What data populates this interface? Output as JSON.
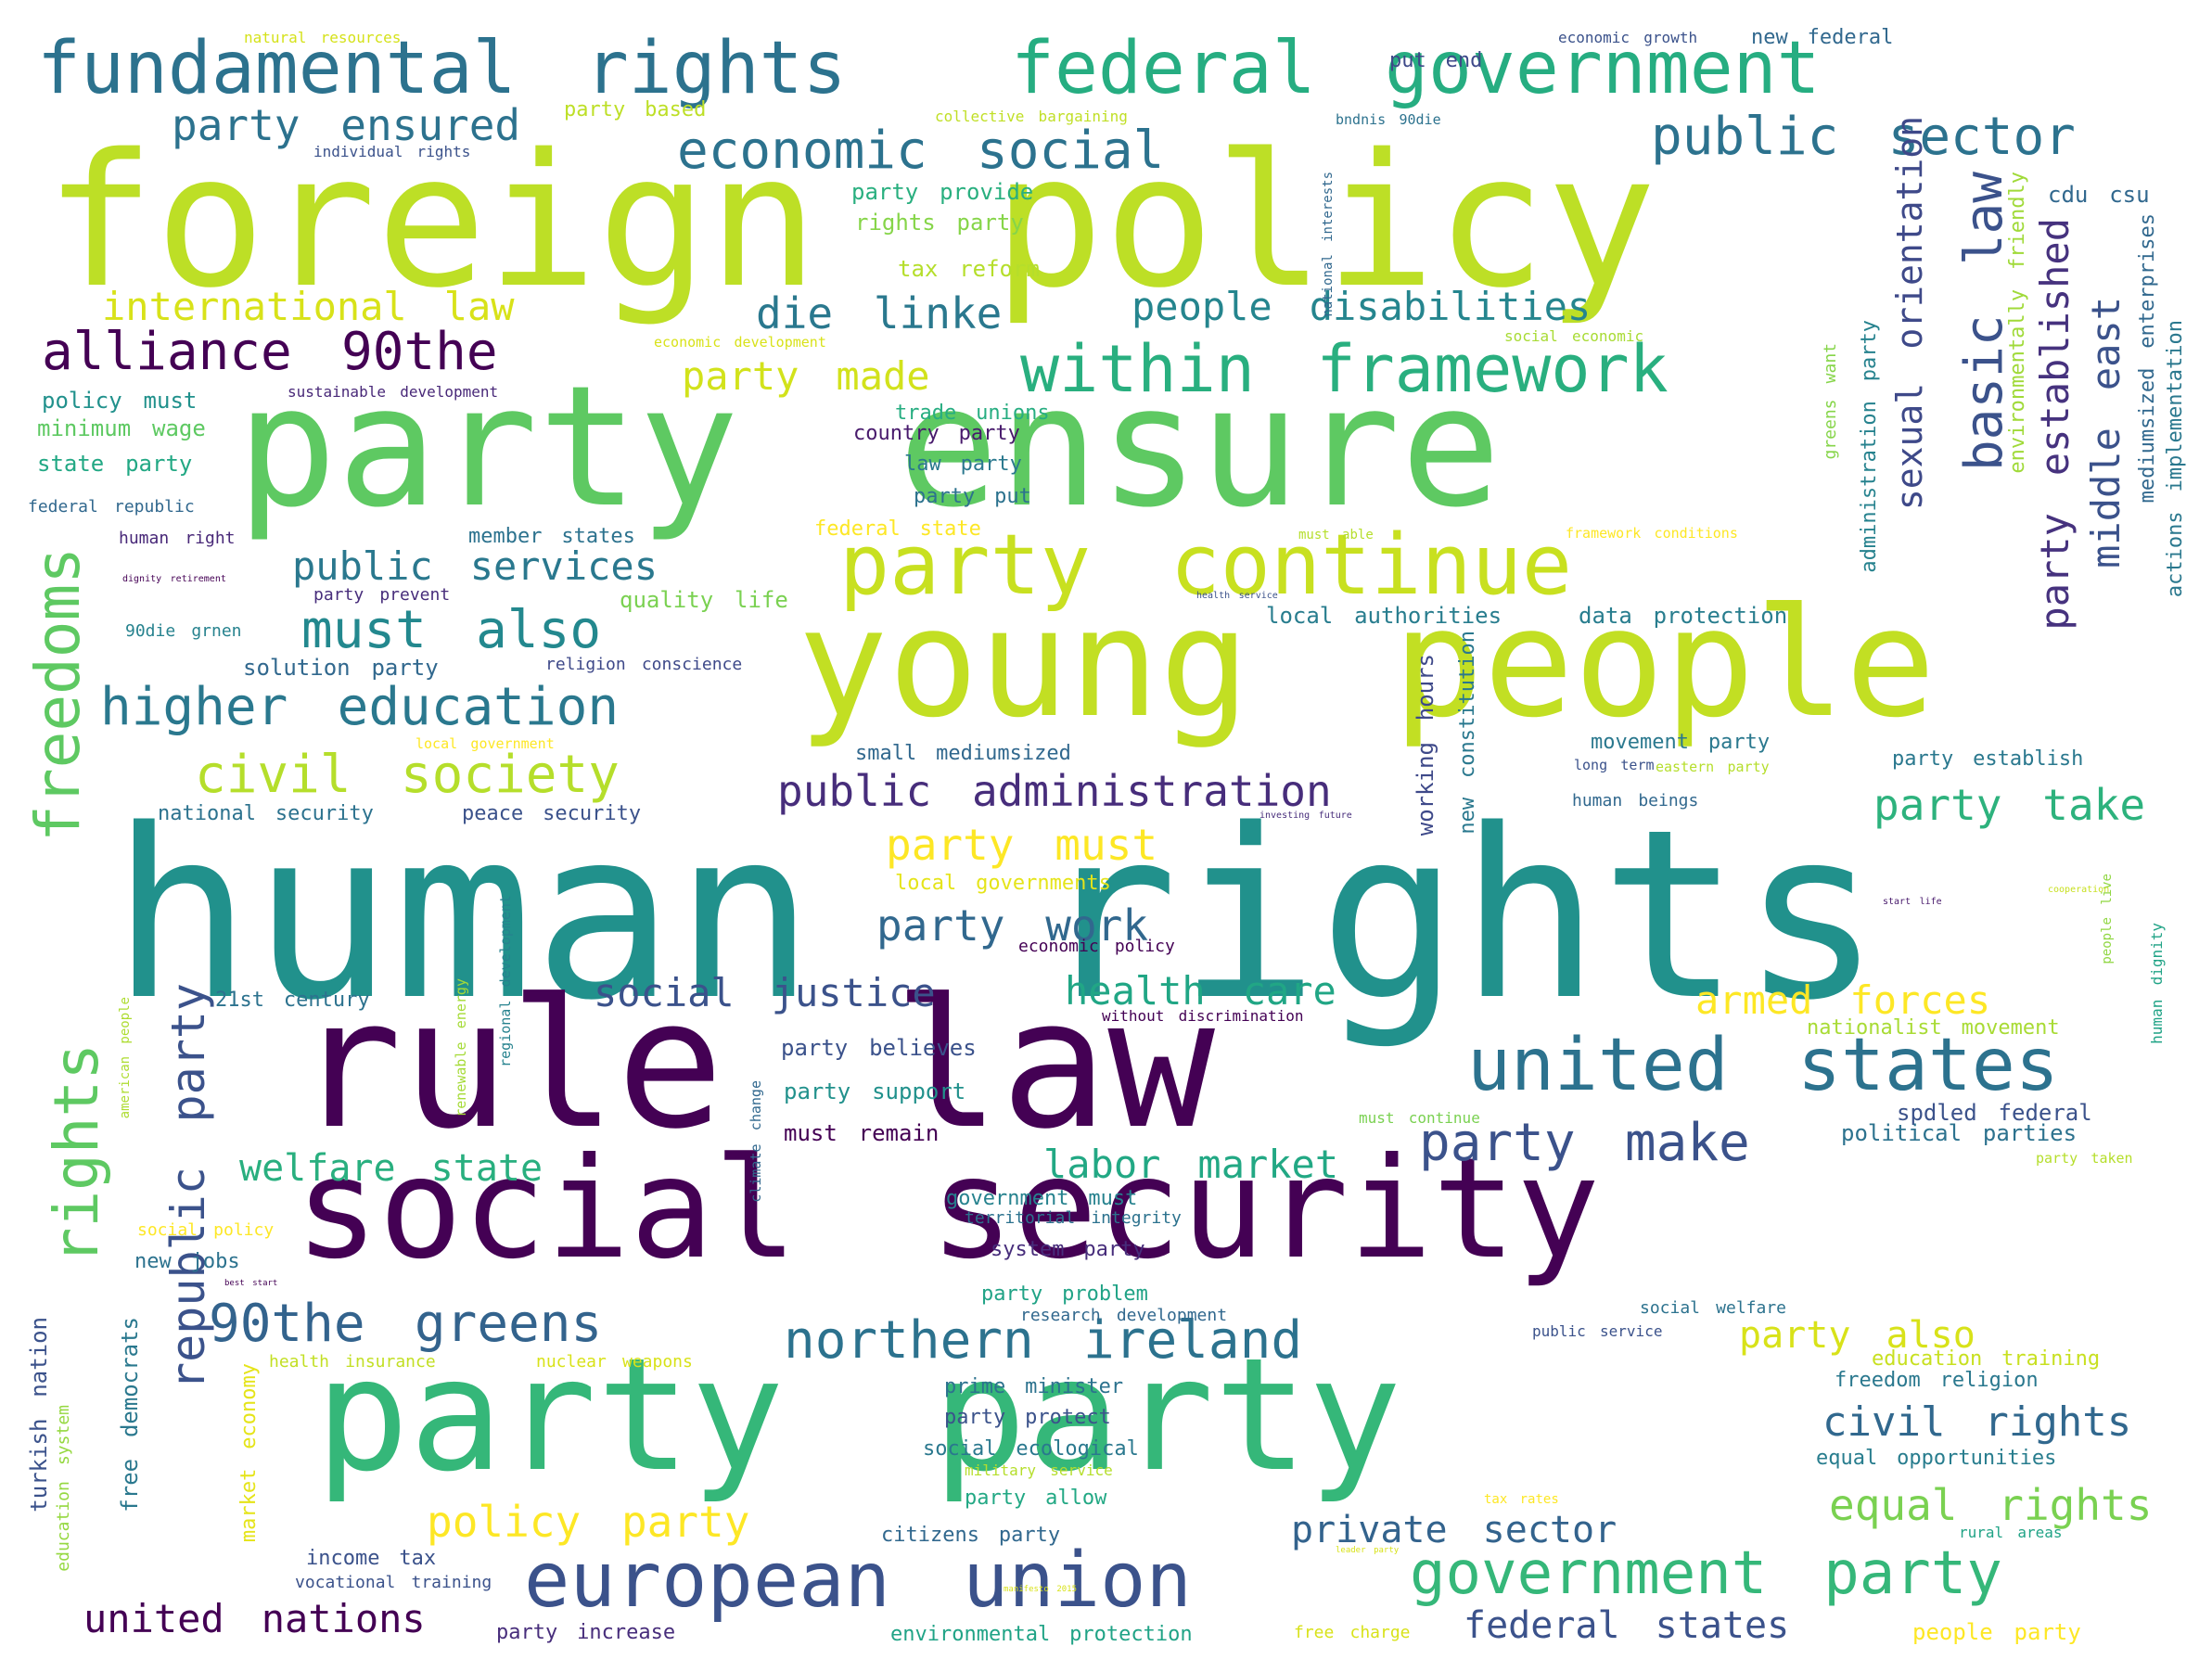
{
  "words": [
    {
      "text": "human rights",
      "color": "#21918c"
    },
    {
      "text": "foreign policy",
      "color": "#bddf26"
    },
    {
      "text": "party ensure",
      "color": "#5ec962"
    },
    {
      "text": "young people",
      "color": "#c2df23"
    },
    {
      "text": "rule law",
      "color": "#440154"
    },
    {
      "text": "social security",
      "color": "#440154"
    },
    {
      "text": "party party",
      "color": "#35b779"
    },
    {
      "text": "european union",
      "color": "#3b528b"
    },
    {
      "text": "party continue",
      "color": "#c8e020"
    },
    {
      "text": "united states",
      "color": "#2c728e"
    },
    {
      "text": "fundamental rights",
      "color": "#2c728e"
    },
    {
      "text": "federal government",
      "color": "#26ad81"
    },
    {
      "text": "government party",
      "color": "#35b779"
    },
    {
      "text": "within framework",
      "color": "#29af7f"
    },
    {
      "text": "freedoms",
      "color": "#5ec962"
    },
    {
      "text": "rights",
      "color": "#5ec962"
    },
    {
      "text": "alliance 90the",
      "color": "#440154"
    },
    {
      "text": "higher education",
      "color": "#2a788e"
    },
    {
      "text": "civil society",
      "color": "#b5de2b"
    },
    {
      "text": "must also",
      "color": "#23888e"
    },
    {
      "text": "northern ireland",
      "color": "#2c728e"
    },
    {
      "text": "90the greens",
      "color": "#33638d"
    },
    {
      "text": "public sector",
      "color": "#2c728e"
    },
    {
      "text": "economic social",
      "color": "#2c728e"
    },
    {
      "text": "republic party",
      "color": "#3b528b"
    },
    {
      "text": "party make",
      "color": "#3b528b"
    },
    {
      "text": "public administration",
      "color": "#472d7b"
    },
    {
      "text": "basic law",
      "color": "#3b528b"
    },
    {
      "text": "sexual orientation",
      "color": "#3e4989"
    },
    {
      "text": "party ensured",
      "color": "#2c728e"
    },
    {
      "text": "international law",
      "color": "#d8e219"
    },
    {
      "text": "die linke",
      "color": "#2a788e"
    },
    {
      "text": "people disabilities",
      "color": "#25858e"
    },
    {
      "text": "party made",
      "color": "#d2e21b"
    },
    {
      "text": "public services",
      "color": "#2a788e"
    },
    {
      "text": "party established",
      "color": "#46327e"
    },
    {
      "text": "middle east",
      "color": "#3b528b"
    },
    {
      "text": "party must",
      "color": "#fde725"
    },
    {
      "text": "party work",
      "color": "#31688e"
    },
    {
      "text": "party take",
      "color": "#2db27d"
    },
    {
      "text": "social justice",
      "color": "#3b528b"
    },
    {
      "text": "health care",
      "color": "#21a685"
    },
    {
      "text": "armed forces",
      "color": "#fde725"
    },
    {
      "text": "welfare state",
      "color": "#29af7f"
    },
    {
      "text": "labor market",
      "color": "#22a884"
    },
    {
      "text": "policy party",
      "color": "#fde725"
    },
    {
      "text": "united nations",
      "color": "#440154"
    },
    {
      "text": "private sector",
      "color": "#33638d"
    },
    {
      "text": "federal states",
      "color": "#3b528b"
    },
    {
      "text": "equal rights",
      "color": "#7ad151"
    },
    {
      "text": "civil rights",
      "color": "#31688e"
    },
    {
      "text": "party also",
      "color": "#d8e219"
    },
    {
      "text": "cdu csu",
      "color": "#31688e"
    },
    {
      "text": "mediumsized enterprises",
      "color": "#31688e"
    },
    {
      "text": "actions implementation",
      "color": "#2a788e"
    },
    {
      "text": "environmentally friendly",
      "color": "#a0da39"
    },
    {
      "text": "administration party",
      "color": "#26828e"
    },
    {
      "text": "greens want",
      "color": "#86d549"
    },
    {
      "text": "working hours",
      "color": "#3e4989"
    },
    {
      "text": "new constitution",
      "color": "#2a788e"
    },
    {
      "text": "climate change",
      "color": "#31688e"
    },
    {
      "text": "regional development",
      "color": "#26828e"
    },
    {
      "text": "renewable energy",
      "color": "#a5db36"
    },
    {
      "text": "turkish nation",
      "color": "#3b528b"
    },
    {
      "text": "education system",
      "color": "#95d840"
    },
    {
      "text": "free democrats",
      "color": "#2a788e"
    },
    {
      "text": "market economy",
      "color": "#e5e419"
    },
    {
      "text": "american people",
      "color": "#addc30"
    },
    {
      "text": "human dignity",
      "color": "#20a386"
    },
    {
      "text": "people live",
      "color": "#90d743"
    },
    {
      "text": "natural resources",
      "color": "#d5e21a"
    },
    {
      "text": "party based",
      "color": "#bddf26"
    },
    {
      "text": "collective bargaining",
      "color": "#c0df25"
    },
    {
      "text": "individual rights",
      "color": "#3b528b"
    },
    {
      "text": "bndnis 90die",
      "color": "#2c728e"
    },
    {
      "text": "economic growth",
      "color": "#3b528b"
    },
    {
      "text": "new federal",
      "color": "#31688e"
    },
    {
      "text": "put end",
      "color": "#3e4989"
    },
    {
      "text": "party provide",
      "color": "#29af7f"
    },
    {
      "text": "rights party",
      "color": "#86d549"
    },
    {
      "text": "tax reform",
      "color": "#b5de2b"
    },
    {
      "text": "economic development",
      "color": "#d8e219"
    },
    {
      "text": "social economic",
      "color": "#a8db34"
    },
    {
      "text": "sustainable development",
      "color": "#482878"
    },
    {
      "text": "policy must",
      "color": "#21918c"
    },
    {
      "text": "minimum wage",
      "color": "#5ec962"
    },
    {
      "text": "state party",
      "color": "#22a884"
    },
    {
      "text": "federal republic",
      "color": "#31688e"
    },
    {
      "text": "human right",
      "color": "#482878"
    },
    {
      "text": "dignity retirement",
      "color": "#440154"
    },
    {
      "text": "party prevent",
      "color": "#472d7b"
    },
    {
      "text": "quality life",
      "color": "#7ad151"
    },
    {
      "text": "90die grnen",
      "color": "#26828e"
    },
    {
      "text": "solution party",
      "color": "#31688e"
    },
    {
      "text": "religion conscience",
      "color": "#3e4989"
    },
    {
      "text": "member states",
      "color": "#2c728e"
    },
    {
      "text": "trade unions",
      "color": "#27ad81"
    },
    {
      "text": "country party",
      "color": "#481a6c"
    },
    {
      "text": "law party",
      "color": "#2a788e"
    },
    {
      "text": "party put",
      "color": "#2c728e"
    },
    {
      "text": "federal state",
      "color": "#fde725"
    },
    {
      "text": "local authorities",
      "color": "#287d8e"
    },
    {
      "text": "data protection",
      "color": "#287d8e"
    },
    {
      "text": "framework conditions",
      "color": "#fde725"
    },
    {
      "text": "must able",
      "color": "#b5de2b"
    },
    {
      "text": "health service",
      "color": "#3b528b"
    },
    {
      "text": "national interests",
      "color": "#31688e"
    },
    {
      "text": "local government",
      "color": "#fde725"
    },
    {
      "text": "small mediumsized",
      "color": "#31688e"
    },
    {
      "text": "national security",
      "color": "#2c728e"
    },
    {
      "text": "peace security",
      "color": "#3b528b"
    },
    {
      "text": "movement party",
      "color": "#2a788e"
    },
    {
      "text": "long term",
      "color": "#3b528b"
    },
    {
      "text": "eastern party",
      "color": "#b5de2b"
    },
    {
      "text": "party establish",
      "color": "#2a788e"
    },
    {
      "text": "human beings",
      "color": "#31688e"
    },
    {
      "text": "investing future",
      "color": "#472d7b"
    },
    {
      "text": "local governments",
      "color": "#e5e419"
    },
    {
      "text": "start life",
      "color": "#481a6c"
    },
    {
      "text": "cooperation",
      "color": "#c8e020"
    },
    {
      "text": "economic policy",
      "color": "#440154"
    },
    {
      "text": "21st century",
      "color": "#2c728e"
    },
    {
      "text": "without discrimination",
      "color": "#440154"
    },
    {
      "text": "nationalist movement",
      "color": "#a8db34"
    },
    {
      "text": "party believes",
      "color": "#3b528b"
    },
    {
      "text": "party support",
      "color": "#21918c"
    },
    {
      "text": "must continue",
      "color": "#7ad151"
    },
    {
      "text": "spdled federal",
      "color": "#3b528b"
    },
    {
      "text": "must remain",
      "color": "#440154"
    },
    {
      "text": "political parties",
      "color": "#2c728e"
    },
    {
      "text": "party taken",
      "color": "#b5de2b"
    },
    {
      "text": "government must",
      "color": "#26828e"
    },
    {
      "text": "territorial integrity",
      "color": "#2c728e"
    },
    {
      "text": "social policy",
      "color": "#fde725"
    },
    {
      "text": "system party",
      "color": "#472d7b"
    },
    {
      "text": "new jobs",
      "color": "#2c728e"
    },
    {
      "text": "best start",
      "color": "#440154"
    },
    {
      "text": "party problem",
      "color": "#20a386"
    },
    {
      "text": "research development",
      "color": "#31688e"
    },
    {
      "text": "social welfare",
      "color": "#2c728e"
    },
    {
      "text": "public service",
      "color": "#3b528b"
    },
    {
      "text": "education training",
      "color": "#c8e020"
    },
    {
      "text": "health insurance",
      "color": "#c2df23"
    },
    {
      "text": "nuclear weapons",
      "color": "#d8e219"
    },
    {
      "text": "prime minister",
      "color": "#2c728e"
    },
    {
      "text": "freedom religion",
      "color": "#2a788e"
    },
    {
      "text": "party protect",
      "color": "#3b528b"
    },
    {
      "text": "social ecological",
      "color": "#2a788e"
    },
    {
      "text": "equal opportunities",
      "color": "#287d8e"
    },
    {
      "text": "military service",
      "color": "#b5de2b"
    },
    {
      "text": "party allow",
      "color": "#22a884"
    },
    {
      "text": "tax rates",
      "color": "#fde725"
    },
    {
      "text": "rural areas",
      "color": "#20a386"
    },
    {
      "text": "citizens party",
      "color": "#31688e"
    },
    {
      "text": "income tax",
      "color": "#3b528b"
    },
    {
      "text": "vocational training",
      "color": "#3b528b"
    },
    {
      "text": "manifesto 2015",
      "color": "#d8e219"
    },
    {
      "text": "leader party",
      "color": "#d8e219"
    },
    {
      "text": "party increase",
      "color": "#472d7b"
    },
    {
      "text": "environmental protection",
      "color": "#20a386"
    },
    {
      "text": "free charge",
      "color": "#d8e219"
    },
    {
      "text": "people party",
      "color": "#fde725"
    }
  ]
}
